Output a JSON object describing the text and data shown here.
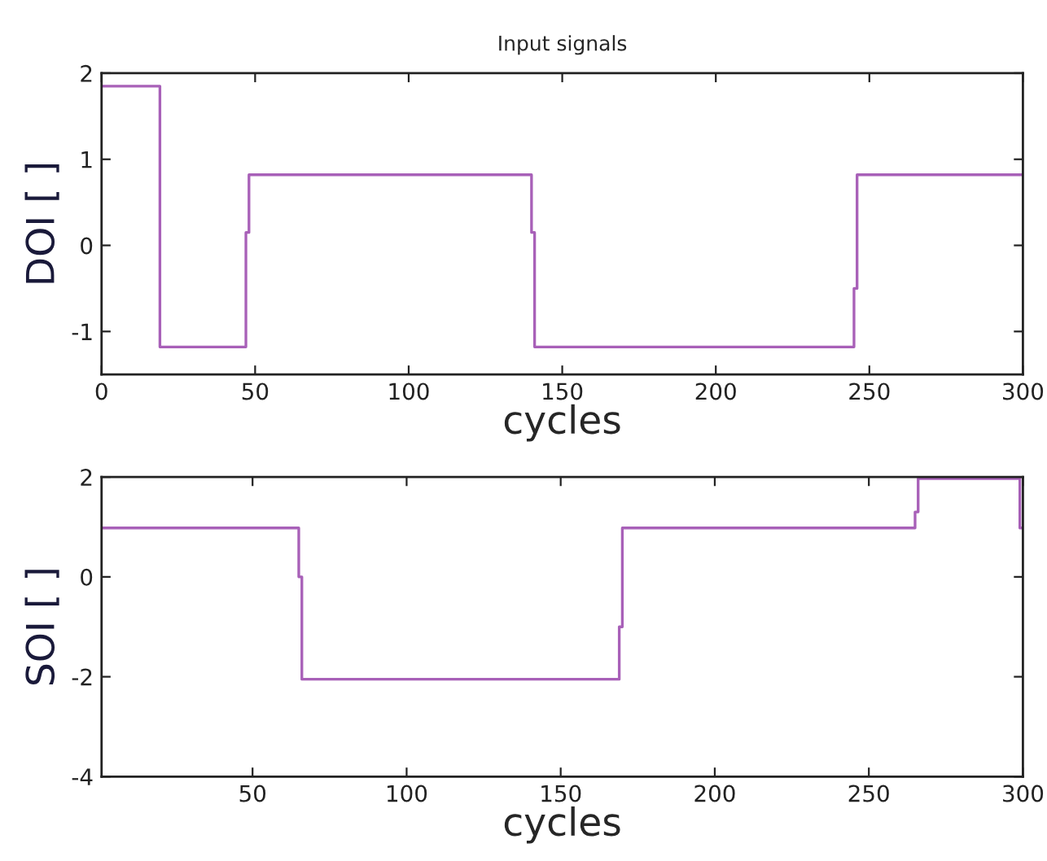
{
  "chart_data": [
    {
      "type": "step",
      "title": "Input signals",
      "xlabel": "cycles",
      "ylabel": "DOI [ ]",
      "x": [
        0,
        19,
        47,
        48,
        140,
        141,
        245,
        246,
        300
      ],
      "series": [
        {
          "color": "#a860b8",
          "values": [
            1.85,
            -1.18,
            0.15,
            0.82,
            0.15,
            -1.18,
            -0.5,
            0.82,
            0.82
          ]
        }
      ],
      "xlim": [
        0,
        300
      ],
      "ylim": [
        -1.5,
        2
      ],
      "xticks": [
        0,
        50,
        100,
        150,
        200,
        250,
        300
      ],
      "yticks": [
        -1,
        0,
        1,
        2
      ],
      "grid": false,
      "legend": false
    },
    {
      "type": "step",
      "xlabel": "cycles",
      "ylabel": "SOI [ ]",
      "x": [
        1,
        65,
        66,
        169,
        170,
        265,
        266,
        299,
        300
      ],
      "series": [
        {
          "color": "#a860b8",
          "values": [
            0.98,
            0,
            -2.05,
            -1.0,
            0.98,
            1.3,
            1.97,
            0.98,
            0.98
          ]
        }
      ],
      "xlim": [
        1,
        300
      ],
      "ylim": [
        -4,
        2
      ],
      "xticks": [
        50,
        100,
        150,
        200,
        250,
        300
      ],
      "yticks": [
        -4,
        -2,
        0,
        2
      ],
      "grid": false,
      "legend": false
    }
  ]
}
